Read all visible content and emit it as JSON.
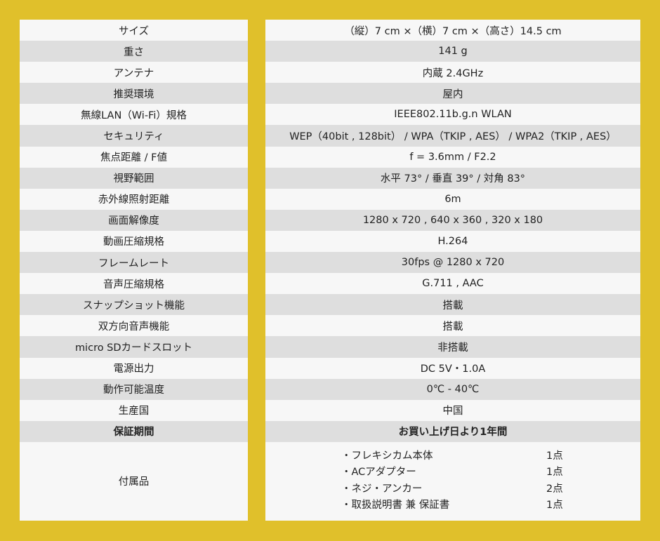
{
  "colors": {
    "background": "#e0c02b",
    "row_light": "#f7f7f7",
    "row_dark": "#dedede"
  },
  "specs": [
    {
      "label": "サイズ",
      "value": "（縦）7 cm ×（横）7 cm ×（高さ）14.5 cm"
    },
    {
      "label": "重さ",
      "value": "141 g"
    },
    {
      "label": "アンテナ",
      "value": "内蔵 2.4GHz"
    },
    {
      "label": "推奨環境",
      "value": "屋内"
    },
    {
      "label": "無線LAN（Wi-Fi）規格",
      "value": "IEEE802.11b.g.n WLAN"
    },
    {
      "label": "セキュリティ",
      "value": "WEP（40bit , 128bit） / WPA（TKIP , AES） / WPA2（TKIP , AES）"
    },
    {
      "label": "焦点距離 / F値",
      "value": "f = 3.6mm / F2.2"
    },
    {
      "label": "視野範囲",
      "value": "水平 73° /  垂直 39° / 対角 83°"
    },
    {
      "label": "赤外線照射距離",
      "value": "6m"
    },
    {
      "label": "画面解像度",
      "value": "1280 x 720 , 640 x 360 , 320 x 180"
    },
    {
      "label": "動画圧縮規格",
      "value": "H.264"
    },
    {
      "label": "フレームレート",
      "value": "30fps @ 1280 x 720"
    },
    {
      "label": "音声圧縮規格",
      "value": "G.711 , AAC"
    },
    {
      "label": "スナップショット機能",
      "value": "搭載"
    },
    {
      "label": "双方向音声機能",
      "value": "搭載"
    },
    {
      "label": "micro SDカードスロット",
      "value": "非搭載"
    },
    {
      "label": "電源出力",
      "value": "DC 5V・1.0A"
    },
    {
      "label": "動作可能温度",
      "value": "0℃ - 40℃"
    },
    {
      "label": "生産国",
      "value": "中国"
    },
    {
      "label": "保証期間",
      "value": "お買い上げ日より1年間"
    }
  ],
  "accessories": {
    "label": "付属品",
    "items": [
      {
        "name": "・フレキシカム本体",
        "qty": "1点"
      },
      {
        "name": "・ACアダプター",
        "qty": "1点"
      },
      {
        "name": "・ネジ・アンカー",
        "qty": "2点"
      },
      {
        "name": "・取扱説明書 兼 保証書",
        "qty": "1点"
      }
    ]
  }
}
